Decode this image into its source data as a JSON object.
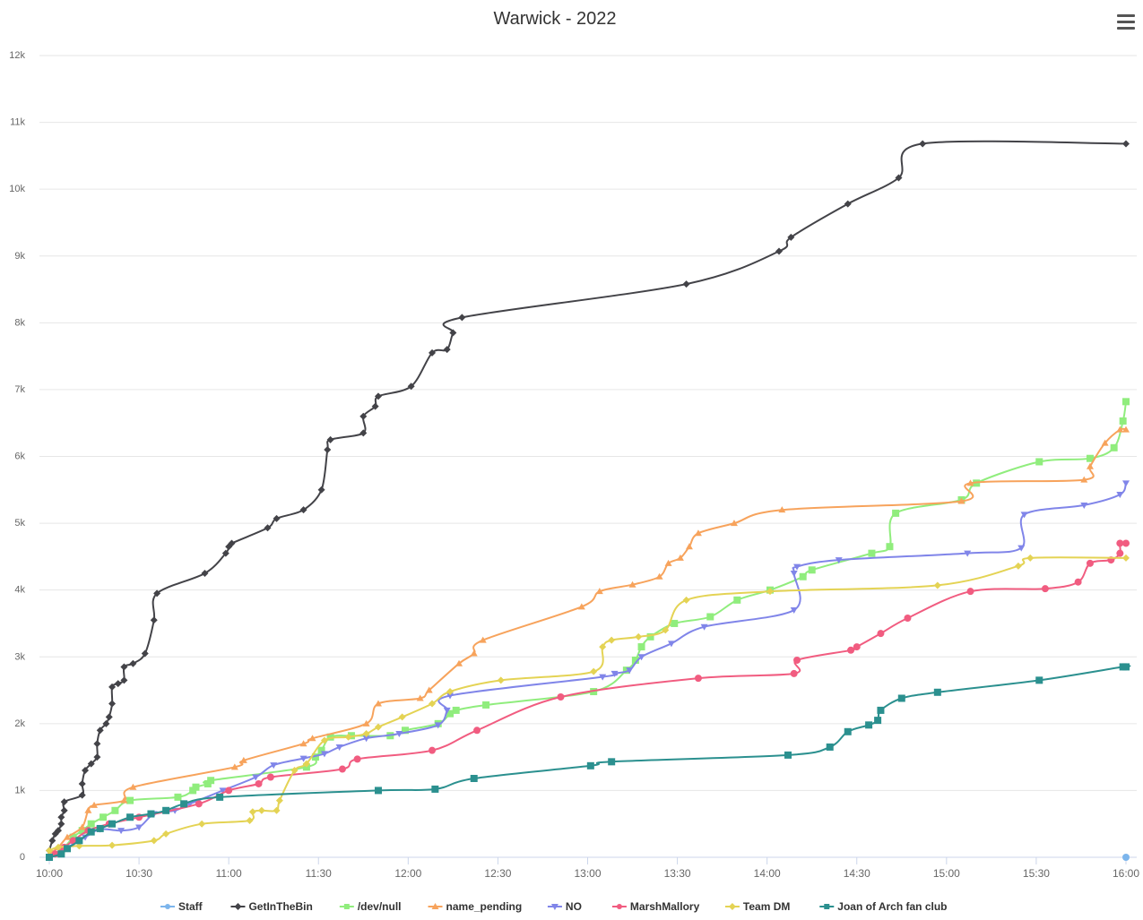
{
  "chart_data": {
    "type": "line",
    "title": "Warwick - 2022",
    "xlabel": "",
    "ylabel": "",
    "ylim": [
      0,
      12000
    ],
    "xlim": [
      "10:00",
      "16:00"
    ],
    "grid": true,
    "legend_position": "bottom",
    "x_ticks": [
      "10:00",
      "10:30",
      "11:00",
      "11:30",
      "12:00",
      "12:30",
      "13:00",
      "13:30",
      "14:00",
      "14:30",
      "15:00",
      "15:30",
      "16:00"
    ],
    "y_ticks": [
      "0",
      "1k",
      "2k",
      "3k",
      "4k",
      "5k",
      "6k",
      "7k",
      "8k",
      "9k",
      "10k",
      "11k",
      "12k"
    ],
    "y_tick_values": [
      0,
      1000,
      2000,
      3000,
      4000,
      5000,
      6000,
      7000,
      8000,
      9000,
      10000,
      11000,
      12000
    ],
    "series": [
      {
        "name": "Staff",
        "color": "#7cb5ec",
        "marker": "circle",
        "points": [
          [
            "16:00",
            0
          ]
        ]
      },
      {
        "name": "GetInTheBin",
        "color": "#434348",
        "marker": "diamond",
        "points": [
          [
            "10:00",
            100
          ],
          [
            "10:01",
            250
          ],
          [
            "10:02",
            350
          ],
          [
            "10:03",
            400
          ],
          [
            "10:04",
            500
          ],
          [
            "10:04",
            600
          ],
          [
            "10:05",
            700
          ],
          [
            "10:05",
            830
          ],
          [
            "10:11",
            930
          ],
          [
            "10:11",
            1100
          ],
          [
            "10:12",
            1300
          ],
          [
            "10:14",
            1400
          ],
          [
            "10:16",
            1500
          ],
          [
            "10:16",
            1700
          ],
          [
            "10:17",
            1900
          ],
          [
            "10:19",
            2000
          ],
          [
            "10:20",
            2100
          ],
          [
            "10:21",
            2300
          ],
          [
            "10:21",
            2550
          ],
          [
            "10:23",
            2600
          ],
          [
            "10:25",
            2650
          ],
          [
            "10:25",
            2850
          ],
          [
            "10:28",
            2900
          ],
          [
            "10:32",
            3050
          ],
          [
            "10:35",
            3550
          ],
          [
            "10:36",
            3950
          ],
          [
            "10:52",
            4250
          ],
          [
            "10:59",
            4550
          ],
          [
            "11:00",
            4650
          ],
          [
            "11:01",
            4700
          ],
          [
            "11:13",
            4930
          ],
          [
            "11:16",
            5070
          ],
          [
            "11:25",
            5200
          ],
          [
            "11:31",
            5500
          ],
          [
            "11:33",
            6100
          ],
          [
            "11:34",
            6250
          ],
          [
            "11:45",
            6350
          ],
          [
            "11:45",
            6600
          ],
          [
            "11:49",
            6750
          ],
          [
            "11:50",
            6900
          ],
          [
            "12:01",
            7050
          ],
          [
            "12:08",
            7550
          ],
          [
            "12:13",
            7600
          ],
          [
            "12:15",
            7850
          ],
          [
            "12:18",
            8080
          ],
          [
            "13:33",
            8580
          ],
          [
            "14:04",
            9070
          ],
          [
            "14:08",
            9280
          ],
          [
            "14:27",
            9780
          ],
          [
            "14:44",
            10170
          ],
          [
            "14:52",
            10680
          ],
          [
            "16:00",
            10680
          ]
        ]
      },
      {
        "name": "/dev/null",
        "color": "#90ed7d",
        "marker": "square",
        "points": [
          [
            "10:00",
            0
          ],
          [
            "10:04",
            100
          ],
          [
            "10:08",
            300
          ],
          [
            "10:11",
            400
          ],
          [
            "10:14",
            500
          ],
          [
            "10:18",
            600
          ],
          [
            "10:22",
            700
          ],
          [
            "10:27",
            850
          ],
          [
            "10:43",
            900
          ],
          [
            "10:48",
            1000
          ],
          [
            "10:49",
            1050
          ],
          [
            "10:53",
            1100
          ],
          [
            "10:54",
            1150
          ],
          [
            "11:26",
            1350
          ],
          [
            "11:29",
            1500
          ],
          [
            "11:31",
            1600
          ],
          [
            "11:34",
            1800
          ],
          [
            "11:41",
            1820
          ],
          [
            "11:54",
            1820
          ],
          [
            "11:59",
            1900
          ],
          [
            "12:10",
            2000
          ],
          [
            "12:14",
            2150
          ],
          [
            "12:16",
            2200
          ],
          [
            "12:26",
            2280
          ],
          [
            "13:02",
            2480
          ],
          [
            "13:13",
            2800
          ],
          [
            "13:16",
            2950
          ],
          [
            "13:18",
            3150
          ],
          [
            "13:21",
            3300
          ],
          [
            "13:29",
            3500
          ],
          [
            "13:41",
            3600
          ],
          [
            "13:50",
            3850
          ],
          [
            "14:01",
            4000
          ],
          [
            "14:12",
            4200
          ],
          [
            "14:15",
            4300
          ],
          [
            "14:35",
            4550
          ],
          [
            "14:41",
            4650
          ],
          [
            "14:43",
            5150
          ],
          [
            "15:05",
            5350
          ],
          [
            "15:10",
            5600
          ],
          [
            "15:31",
            5920
          ],
          [
            "15:48",
            5970
          ],
          [
            "15:56",
            6130
          ],
          [
            "15:59",
            6530
          ],
          [
            "16:00",
            6820
          ]
        ]
      },
      {
        "name": "name_pending",
        "color": "#f7a35c",
        "marker": "triangle",
        "points": [
          [
            "10:00",
            50
          ],
          [
            "10:03",
            150
          ],
          [
            "10:06",
            300
          ],
          [
            "10:11",
            450
          ],
          [
            "10:13",
            700
          ],
          [
            "10:15",
            780
          ],
          [
            "10:25",
            850
          ],
          [
            "10:28",
            1050
          ],
          [
            "11:02",
            1350
          ],
          [
            "11:05",
            1450
          ],
          [
            "11:25",
            1700
          ],
          [
            "11:28",
            1780
          ],
          [
            "11:46",
            2000
          ],
          [
            "11:50",
            2300
          ],
          [
            "12:04",
            2380
          ],
          [
            "12:07",
            2500
          ],
          [
            "12:17",
            2900
          ],
          [
            "12:22",
            3050
          ],
          [
            "12:25",
            3250
          ],
          [
            "12:58",
            3750
          ],
          [
            "13:04",
            3980
          ],
          [
            "13:15",
            4080
          ],
          [
            "13:24",
            4200
          ],
          [
            "13:27",
            4400
          ],
          [
            "13:31",
            4480
          ],
          [
            "13:34",
            4650
          ],
          [
            "13:37",
            4850
          ],
          [
            "13:49",
            5000
          ],
          [
            "14:05",
            5200
          ],
          [
            "15:05",
            5330
          ],
          [
            "15:08",
            5600
          ],
          [
            "15:46",
            5650
          ],
          [
            "15:48",
            5850
          ],
          [
            "15:53",
            6200
          ],
          [
            "15:58",
            6400
          ],
          [
            "16:00",
            6400
          ]
        ]
      },
      {
        "name": "NO",
        "color": "#8085e9",
        "marker": "triangle-down",
        "points": [
          [
            "10:00",
            0
          ],
          [
            "10:04",
            80
          ],
          [
            "10:08",
            200
          ],
          [
            "10:12",
            300
          ],
          [
            "10:17",
            420
          ],
          [
            "10:24",
            400
          ],
          [
            "10:30",
            450
          ],
          [
            "10:35",
            650
          ],
          [
            "10:42",
            700
          ],
          [
            "10:47",
            800
          ],
          [
            "10:58",
            1000
          ],
          [
            "11:09",
            1200
          ],
          [
            "11:15",
            1380
          ],
          [
            "11:25",
            1480
          ],
          [
            "11:32",
            1550
          ],
          [
            "11:37",
            1650
          ],
          [
            "11:46",
            1780
          ],
          [
            "11:57",
            1850
          ],
          [
            "12:10",
            1980
          ],
          [
            "12:13",
            2200
          ],
          [
            "12:14",
            2420
          ],
          [
            "13:05",
            2700
          ],
          [
            "13:09",
            2750
          ],
          [
            "13:14",
            2800
          ],
          [
            "13:18",
            3000
          ],
          [
            "13:28",
            3200
          ],
          [
            "13:39",
            3450
          ],
          [
            "14:09",
            3700
          ],
          [
            "14:09",
            4250
          ],
          [
            "14:10",
            4350
          ],
          [
            "14:24",
            4450
          ],
          [
            "15:07",
            4550
          ],
          [
            "15:25",
            4630
          ],
          [
            "15:26",
            5130
          ],
          [
            "15:46",
            5270
          ],
          [
            "15:58",
            5430
          ],
          [
            "16:00",
            5600
          ]
        ]
      },
      {
        "name": "MarshMallory",
        "color": "#f15c80",
        "marker": "circle",
        "points": [
          [
            "10:00",
            0
          ],
          [
            "10:02",
            50
          ],
          [
            "10:05",
            150
          ],
          [
            "10:08",
            250
          ],
          [
            "10:13",
            400
          ],
          [
            "10:20",
            500
          ],
          [
            "10:30",
            600
          ],
          [
            "10:50",
            800
          ],
          [
            "11:00",
            1000
          ],
          [
            "11:10",
            1100
          ],
          [
            "11:14",
            1200
          ],
          [
            "11:38",
            1320
          ],
          [
            "11:43",
            1470
          ],
          [
            "12:08",
            1600
          ],
          [
            "12:23",
            1900
          ],
          [
            "12:51",
            2400
          ],
          [
            "13:37",
            2680
          ],
          [
            "14:09",
            2750
          ],
          [
            "14:10",
            2950
          ],
          [
            "14:28",
            3100
          ],
          [
            "14:30",
            3150
          ],
          [
            "14:38",
            3350
          ],
          [
            "14:47",
            3580
          ],
          [
            "15:08",
            3980
          ],
          [
            "15:33",
            4020
          ],
          [
            "15:44",
            4120
          ],
          [
            "15:48",
            4400
          ],
          [
            "15:55",
            4450
          ],
          [
            "15:58",
            4550
          ],
          [
            "15:58",
            4700
          ],
          [
            "16:00",
            4700
          ]
        ]
      },
      {
        "name": "Team DM",
        "color": "#e4d354",
        "marker": "diamond",
        "points": [
          [
            "10:00",
            100
          ],
          [
            "10:03",
            150
          ],
          [
            "10:10",
            170
          ],
          [
            "10:21",
            180
          ],
          [
            "10:35",
            250
          ],
          [
            "10:39",
            350
          ],
          [
            "10:51",
            500
          ],
          [
            "11:07",
            550
          ],
          [
            "11:08",
            680
          ],
          [
            "11:11",
            700
          ],
          [
            "11:16",
            700
          ],
          [
            "11:17",
            850
          ],
          [
            "11:22",
            1300
          ],
          [
            "11:26",
            1400
          ],
          [
            "11:32",
            1750
          ],
          [
            "11:40",
            1800
          ],
          [
            "11:46",
            1850
          ],
          [
            "11:50",
            1950
          ],
          [
            "11:58",
            2100
          ],
          [
            "12:08",
            2300
          ],
          [
            "12:14",
            2480
          ],
          [
            "12:31",
            2650
          ],
          [
            "13:02",
            2780
          ],
          [
            "13:05",
            3150
          ],
          [
            "13:08",
            3250
          ],
          [
            "13:17",
            3300
          ],
          [
            "13:26",
            3400
          ],
          [
            "13:33",
            3850
          ],
          [
            "14:01",
            3980
          ],
          [
            "14:57",
            4070
          ],
          [
            "15:24",
            4360
          ],
          [
            "15:28",
            4480
          ],
          [
            "16:00",
            4480
          ]
        ]
      },
      {
        "name": "Joan of Arch fan club",
        "color": "#2b908f",
        "marker": "square",
        "points": [
          [
            "10:00",
            0
          ],
          [
            "10:04",
            50
          ],
          [
            "10:06",
            130
          ],
          [
            "10:10",
            250
          ],
          [
            "10:14",
            380
          ],
          [
            "10:17",
            430
          ],
          [
            "10:21",
            500
          ],
          [
            "10:27",
            600
          ],
          [
            "10:34",
            650
          ],
          [
            "10:39",
            700
          ],
          [
            "10:45",
            800
          ],
          [
            "10:57",
            900
          ],
          [
            "11:50",
            1000
          ],
          [
            "12:09",
            1020
          ],
          [
            "12:22",
            1180
          ],
          [
            "13:01",
            1370
          ],
          [
            "13:08",
            1430
          ],
          [
            "14:07",
            1530
          ],
          [
            "14:21",
            1650
          ],
          [
            "14:27",
            1880
          ],
          [
            "14:34",
            1980
          ],
          [
            "14:37",
            2050
          ],
          [
            "14:38",
            2200
          ],
          [
            "14:45",
            2380
          ],
          [
            "14:57",
            2470
          ],
          [
            "15:31",
            2650
          ],
          [
            "15:59",
            2850
          ],
          [
            "16:00",
            2850
          ]
        ]
      }
    ]
  }
}
